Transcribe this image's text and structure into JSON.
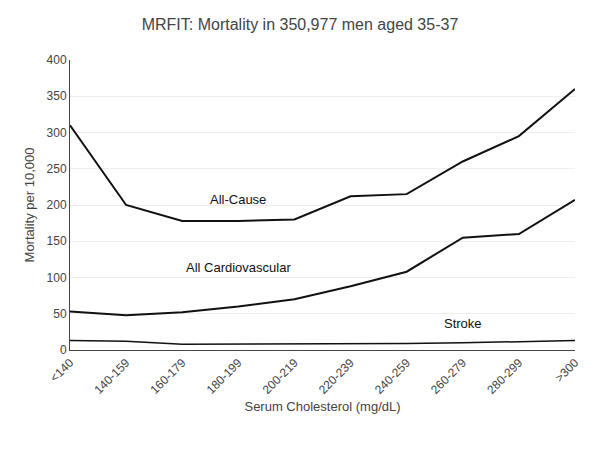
{
  "chart_data": {
    "type": "line",
    "title": "MRFIT: Mortality in 350,977 men aged 35-37",
    "x_label": "Serum Cholesterol (mg/dL)",
    "y_label": "Mortality per 10,000",
    "categories": [
      "<140",
      "140-159",
      "160-179",
      "180-199",
      "200-219",
      "220-239",
      "240-259",
      "260-279",
      "280-299",
      ">300"
    ],
    "series": [
      {
        "color": "#111111",
        "values": [
          310,
          200,
          178,
          178,
          180,
          212,
          215,
          260,
          295,
          360
        ]
      },
      {
        "color": "#111111",
        "values": [
          53,
          48,
          52,
          60,
          70,
          88,
          108,
          155,
          160,
          207
        ]
      },
      {
        "color": "#111111",
        "values": [
          13,
          12,
          8,
          8,
          8,
          9,
          9,
          10,
          11,
          13
        ]
      }
    ],
    "annotations": [
      "All-Cause",
      "All Cardiovascular",
      "Stroke"
    ],
    "ylim": [
      0,
      400
    ],
    "yticks": [
      0,
      50,
      100,
      150,
      200,
      250,
      300,
      350,
      400
    ],
    "grid": true
  }
}
